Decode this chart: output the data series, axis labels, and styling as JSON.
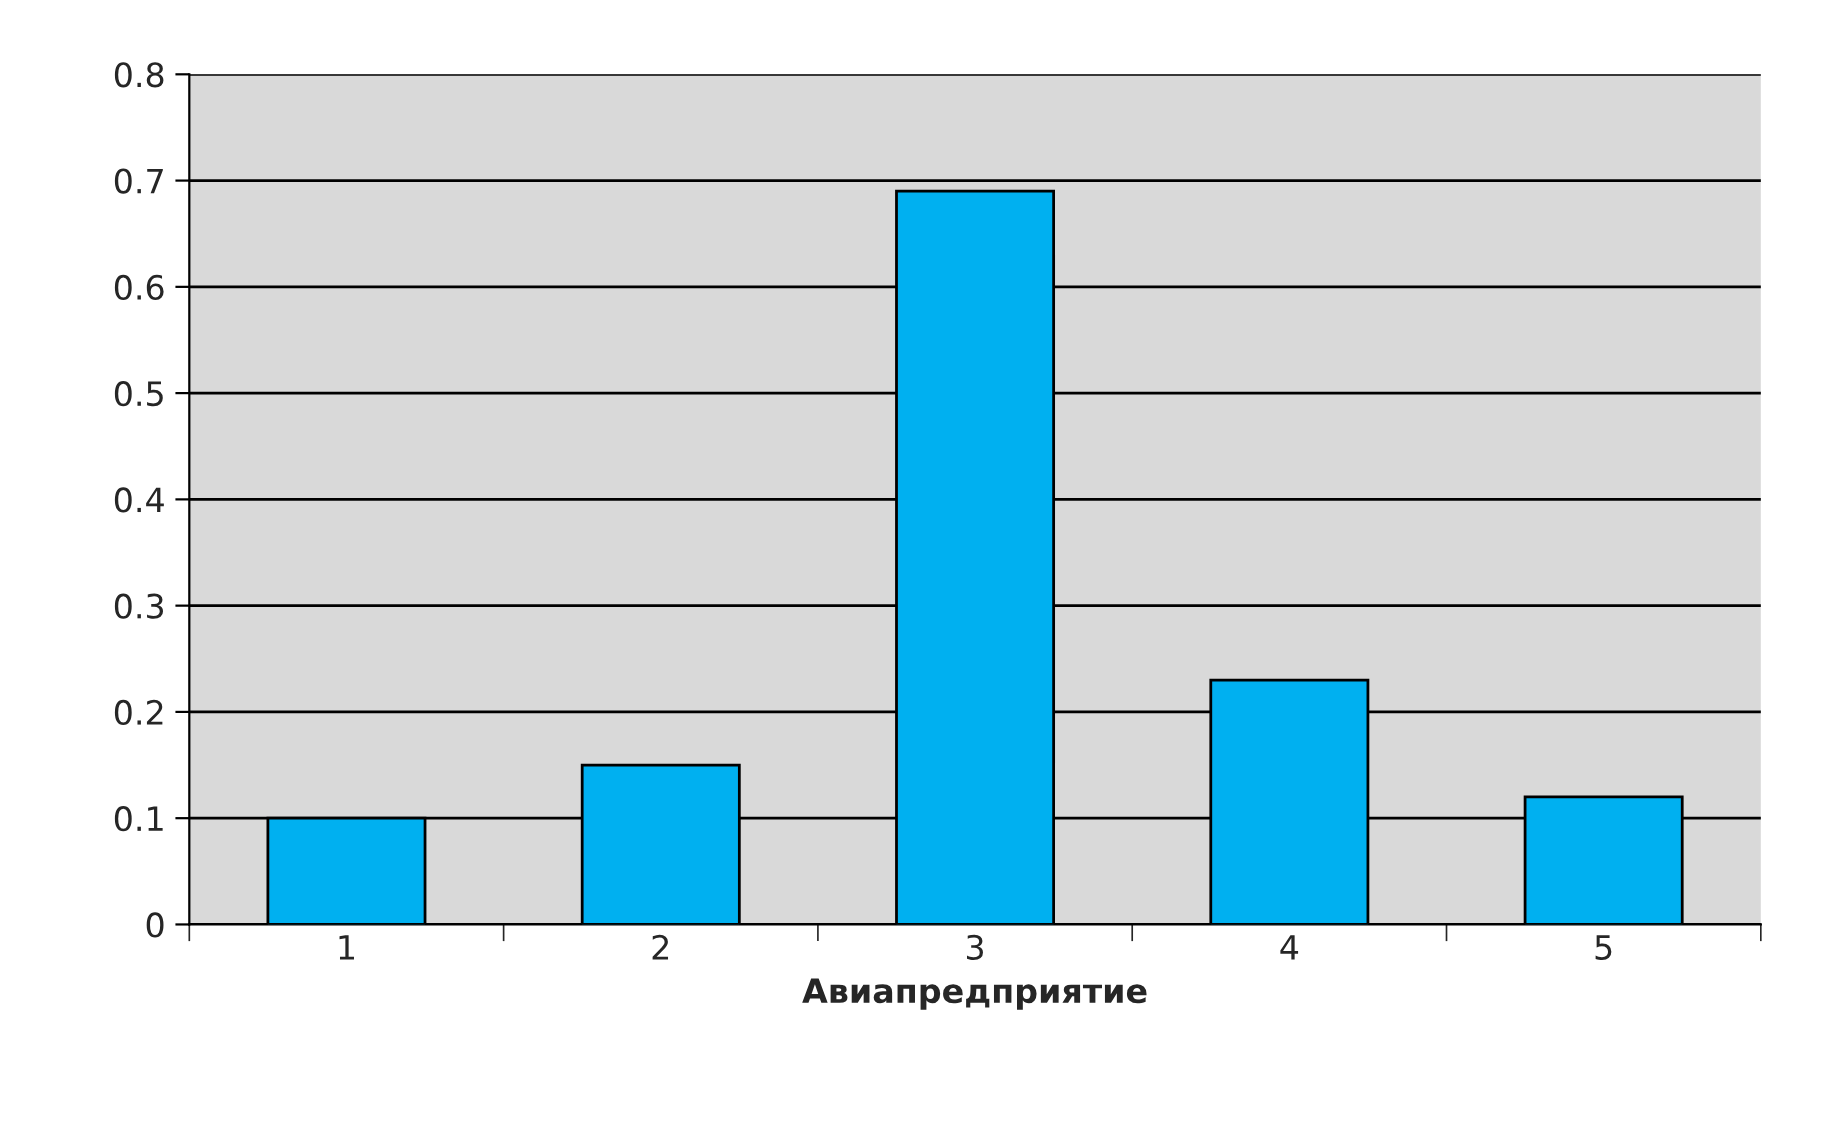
{
  "chart_data": {
    "type": "bar",
    "xlabel": "Авиапредприятие",
    "categories": [
      "1",
      "2",
      "3",
      "4",
      "5"
    ],
    "values": [
      0.1,
      0.15,
      0.69,
      0.23,
      0.12
    ],
    "color": "#00b0f0",
    "ylim": [
      0,
      0.8
    ],
    "yticks": [
      0,
      0.1,
      0.2,
      0.3,
      0.4,
      0.5,
      0.6,
      0.7,
      0.8
    ],
    "grid": "y",
    "legend": false
  }
}
